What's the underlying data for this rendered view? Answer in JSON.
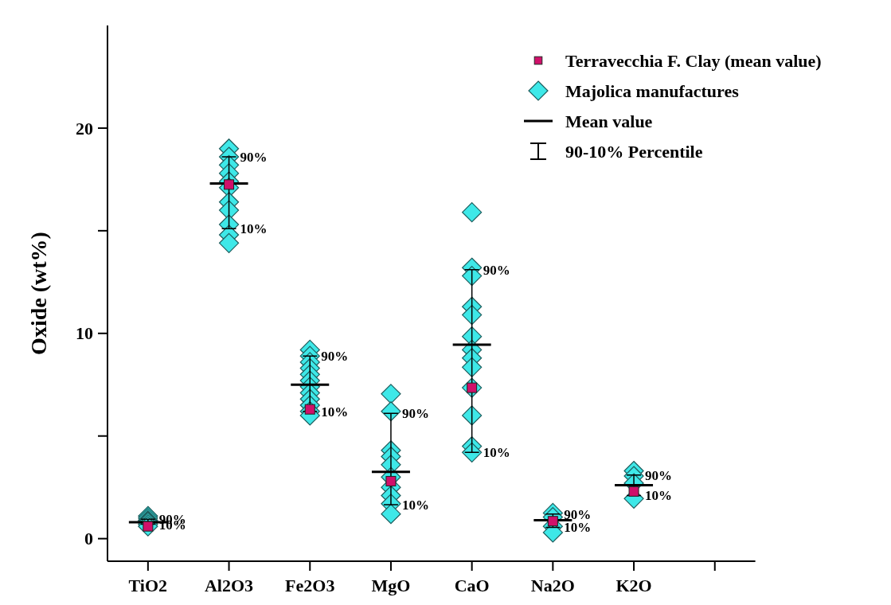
{
  "chart_data": {
    "type": "scatter",
    "ylabel": "Oxide (wt%)",
    "categories": [
      "TiO2",
      "Al2O3",
      "Fe2O3",
      "MgO",
      "CaO",
      "Na2O",
      "K2O",
      null
    ],
    "ylim": [
      -1.1,
      25
    ],
    "yticks": [
      0,
      {
        "value": 5,
        "label": null
      },
      10,
      {
        "value": 15,
        "label": null
      },
      20
    ],
    "legend": "top right",
    "series": [
      {
        "name": "Terravecchia F. Clay (mean value)",
        "marker": "square",
        "color": "#d0106a",
        "values": [
          0.6,
          17.25,
          6.3,
          2.8,
          7.35,
          0.85,
          2.3,
          null
        ]
      },
      {
        "name": "Majolica manufactures",
        "marker": "diamond",
        "color": "#3ee8e8",
        "x": [
          "TiO2",
          "TiO2",
          "TiO2",
          "TiO2",
          "TiO2",
          "TiO2",
          "TiO2",
          "Al2O3",
          "Al2O3",
          "Al2O3",
          "Al2O3",
          "Al2O3",
          "Al2O3",
          "Al2O3",
          "Al2O3",
          "Al2O3",
          "Al2O3",
          "Al2O3",
          "Fe2O3",
          "Fe2O3",
          "Fe2O3",
          "Fe2O3",
          "Fe2O3",
          "Fe2O3",
          "Fe2O3",
          "Fe2O3",
          "Fe2O3",
          "Fe2O3",
          "Fe2O3",
          "Fe2O3",
          "MgO",
          "MgO",
          "MgO",
          "MgO",
          "MgO",
          "MgO",
          "MgO",
          "MgO",
          "MgO",
          "MgO",
          "CaO",
          "CaO",
          "CaO",
          "CaO",
          "CaO",
          "CaO",
          "CaO",
          "CaO",
          "CaO",
          "CaO",
          "CaO",
          "CaO",
          "CaO",
          "Na2O",
          "Na2O",
          "Na2O",
          "Na2O",
          "K2O",
          "K2O",
          "K2O",
          "K2O"
        ],
        "values": [
          1.1,
          1.0,
          0.9,
          0.85,
          0.8,
          0.7,
          0.6,
          19.0,
          18.6,
          18.2,
          17.8,
          17.4,
          17.1,
          16.4,
          16.0,
          15.3,
          14.8,
          14.4,
          9.2,
          8.9,
          8.6,
          8.3,
          8.0,
          7.7,
          7.4,
          7.1,
          6.8,
          6.5,
          6.2,
          6.0,
          7.05,
          6.2,
          4.3,
          4.0,
          3.6,
          2.5,
          2.1,
          1.7,
          1.2,
          3.0,
          15.9,
          13.2,
          12.8,
          11.3,
          10.9,
          9.85,
          9.2,
          8.8,
          8.35,
          7.35,
          6.0,
          4.5,
          4.2,
          1.25,
          1.05,
          0.6,
          0.3,
          3.3,
          3.05,
          2.7,
          1.95
        ]
      },
      {
        "name": "Mean value",
        "type": "box",
        "color": "#000000",
        "boxes": [
          {
            "low": 0.7,
            "q1": 0.8,
            "median": 0.8,
            "q3": 0.8,
            "high": 0.95
          },
          {
            "low": 15.1,
            "q1": 17.3,
            "median": 17.3,
            "q3": 17.3,
            "high": 18.6
          },
          {
            "low": 6.2,
            "q1": 7.5,
            "median": 7.5,
            "q3": 7.5,
            "high": 8.9
          },
          {
            "low": 1.65,
            "q1": 3.25,
            "median": 3.25,
            "q3": 3.25,
            "high": 6.1
          },
          {
            "low": 4.2,
            "q1": 9.45,
            "median": 9.45,
            "q3": 9.45,
            "high": 13.1
          },
          {
            "low": 0.55,
            "q1": 0.9,
            "median": 0.9,
            "q3": 0.9,
            "high": 1.2
          },
          {
            "low": 2.1,
            "q1": 2.6,
            "median": 2.6,
            "q3": 2.6,
            "high": 3.1
          },
          null
        ]
      }
    ],
    "annotations": [
      "90-10% Percentile",
      {
        "text": "90%",
        "x": "TiO2",
        "y": 0.95
      },
      {
        "text": "10%",
        "x": "TiO2",
        "y": 0.7
      },
      {
        "text": "90%",
        "x": "Al2O3",
        "y": 18.6
      },
      {
        "text": "10%",
        "x": "Al2O3",
        "y": 15.1
      },
      {
        "text": "90%",
        "x": "Fe2O3",
        "y": 8.9
      },
      {
        "text": "10%",
        "x": "Fe2O3",
        "y": 6.2
      },
      {
        "text": "90%",
        "x": "MgO",
        "y": 6.1
      },
      {
        "text": "10%",
        "x": "MgO",
        "y": 1.65
      },
      {
        "text": "90%",
        "x": "CaO",
        "y": 13.1
      },
      {
        "text": "10%",
        "x": "CaO",
        "y": 4.2
      },
      {
        "text": "90%",
        "x": "Na2O",
        "y": 1.2
      },
      {
        "text": "10%",
        "x": "Na2O",
        "y": 0.55
      },
      {
        "text": "90%",
        "x": "K2O",
        "y": 3.1
      },
      {
        "text": "10%",
        "x": "K2O",
        "y": 2.1
      }
    ]
  }
}
